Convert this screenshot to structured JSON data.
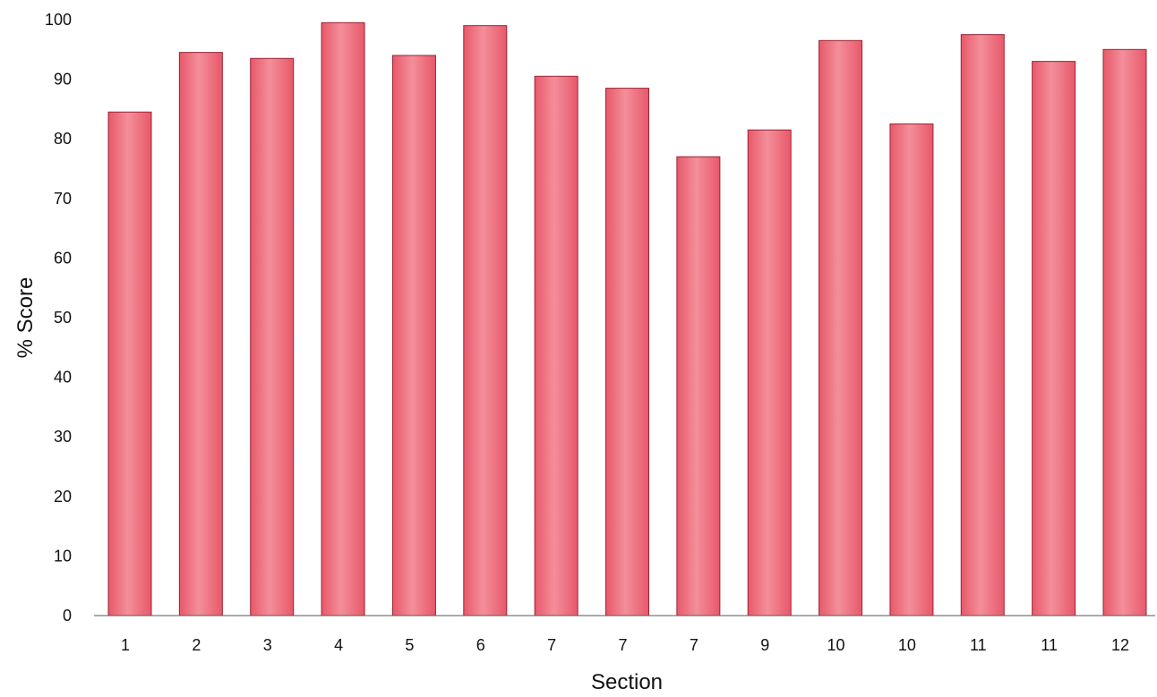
{
  "chart_data": {
    "type": "bar",
    "title": "",
    "xlabel": "Section",
    "ylabel": "% Score",
    "categories": [
      "1",
      "2",
      "3",
      "4",
      "5",
      "6",
      "7",
      "7",
      "7",
      "9",
      "10",
      "10",
      "11",
      "11",
      "12"
    ],
    "values": [
      84.5,
      94.5,
      93.5,
      99.5,
      94,
      99,
      90.5,
      88.5,
      77,
      81.5,
      96.5,
      82.5,
      97.5,
      93,
      95
    ],
    "ylim": [
      0,
      100
    ],
    "yticks": [
      "0",
      "10",
      "20",
      "30",
      "40",
      "50",
      "60",
      "70",
      "80",
      "90",
      "100"
    ],
    "grid": false,
    "legend": "none",
    "colors": {
      "bar": "#e8586a",
      "bar_highlight": "#f38f9a",
      "bar_edge": "#9a2434",
      "axis": "#555555"
    }
  }
}
